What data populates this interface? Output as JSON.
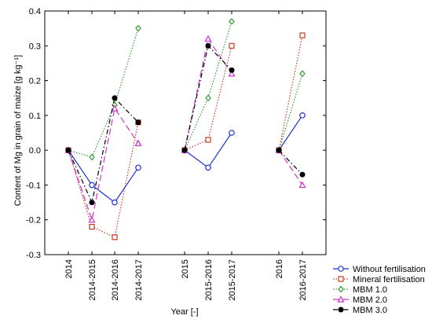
{
  "chart_data": {
    "type": "line",
    "title": "",
    "xlabel": "Year [-]",
    "ylabel": "Content of Mg in grain of maize [g kg⁻¹]",
    "ylim": [
      -0.3,
      0.4
    ],
    "yticks": [
      -0.3,
      -0.2,
      -0.1,
      0.0,
      0.1,
      0.2,
      0.3,
      0.4
    ],
    "ytick_labels": [
      "-0.3",
      "-0.2",
      "-0.1",
      "0.0",
      "0.1",
      "0.2",
      "0.3",
      "0.4"
    ],
    "categories": [
      "2014",
      "2014-2015",
      "2014-2016",
      "2014-2017",
      "2015",
      "2015-2016",
      "2015-2017",
      "2016",
      "2016-2017"
    ],
    "groups": [
      [
        0,
        1,
        2,
        3
      ],
      [
        4,
        5,
        6
      ],
      [
        7,
        8
      ]
    ],
    "grid": false,
    "legend_position": "bottom-right",
    "series": [
      {
        "name": "Without fertilisation",
        "color": "#1f2fd6",
        "dash": "solid",
        "marker": "circle-open",
        "values": [
          0.0,
          -0.1,
          -0.15,
          -0.05,
          0.0,
          -0.05,
          0.05,
          0.0,
          0.1
        ]
      },
      {
        "name": "Mineral fertilisation",
        "color": "#cc3a1f",
        "dash": "dotted",
        "marker": "square-open",
        "values": [
          0.0,
          -0.22,
          -0.25,
          0.08,
          0.0,
          0.03,
          0.3,
          0.0,
          0.33
        ]
      },
      {
        "name": "MBM 1.0",
        "color": "#2e9a2e",
        "dash": "dotted",
        "marker": "diamond-open",
        "values": [
          0.0,
          -0.02,
          0.13,
          0.35,
          0.0,
          0.15,
          0.37,
          0.0,
          0.22
        ]
      },
      {
        "name": "MBM 2.0",
        "color": "#cc33cc",
        "dash": "longdash",
        "marker": "triangle-open",
        "values": [
          0.0,
          -0.2,
          0.12,
          0.02,
          0.0,
          0.32,
          0.22,
          0.0,
          -0.1
        ]
      },
      {
        "name": "MBM 3.0",
        "color": "#000000",
        "dash": "dashdot",
        "marker": "circle-filled",
        "values": [
          0.0,
          -0.15,
          0.15,
          0.08,
          0.0,
          0.3,
          0.23,
          0.0,
          -0.07
        ]
      }
    ]
  }
}
